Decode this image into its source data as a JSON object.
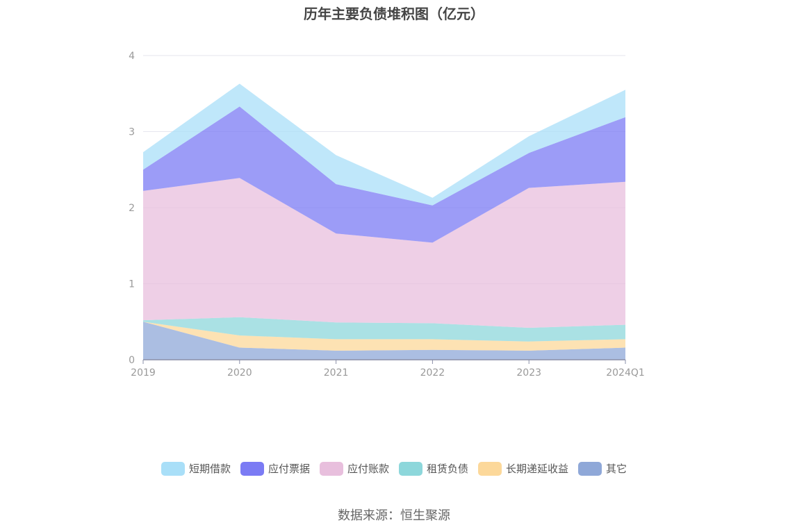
{
  "chart_data": {
    "type": "area",
    "title": "历年主要负债堆积图（亿元）",
    "x": [
      "2019",
      "2020",
      "2021",
      "2022",
      "2023",
      "2024Q1"
    ],
    "ylim": [
      0,
      4
    ],
    "yticks": [
      "0",
      "1",
      "2",
      "3",
      "4"
    ],
    "grid": true,
    "legend_position": "bottom",
    "stacked": true,
    "series": [
      {
        "name": "其它",
        "color": "#8fa8d8",
        "values": [
          0.5,
          0.16,
          0.12,
          0.13,
          0.12,
          0.16
        ]
      },
      {
        "name": "长期递延收益",
        "color": "#fcd89a",
        "values": [
          0.0,
          0.16,
          0.15,
          0.14,
          0.12,
          0.11
        ]
      },
      {
        "name": "租赁负债",
        "color": "#8dd7db",
        "values": [
          0.02,
          0.24,
          0.22,
          0.21,
          0.18,
          0.19
        ]
      },
      {
        "name": "应付账款",
        "color": "#e8bfdd",
        "values": [
          1.7,
          1.83,
          1.17,
          1.06,
          1.84,
          1.88
        ]
      },
      {
        "name": "应付票据",
        "color": "#7b7bf4",
        "values": [
          0.28,
          0.94,
          0.65,
          0.49,
          0.46,
          0.85
        ]
      },
      {
        "name": "短期借款",
        "color": "#a9dff8",
        "values": [
          0.23,
          0.3,
          0.38,
          0.1,
          0.22,
          0.36
        ]
      }
    ]
  },
  "legend_order": [
    "短期借款",
    "应付票据",
    "应付账款",
    "租赁负债",
    "长期递延收益",
    "其它"
  ],
  "source": "数据来源：恒生聚源"
}
